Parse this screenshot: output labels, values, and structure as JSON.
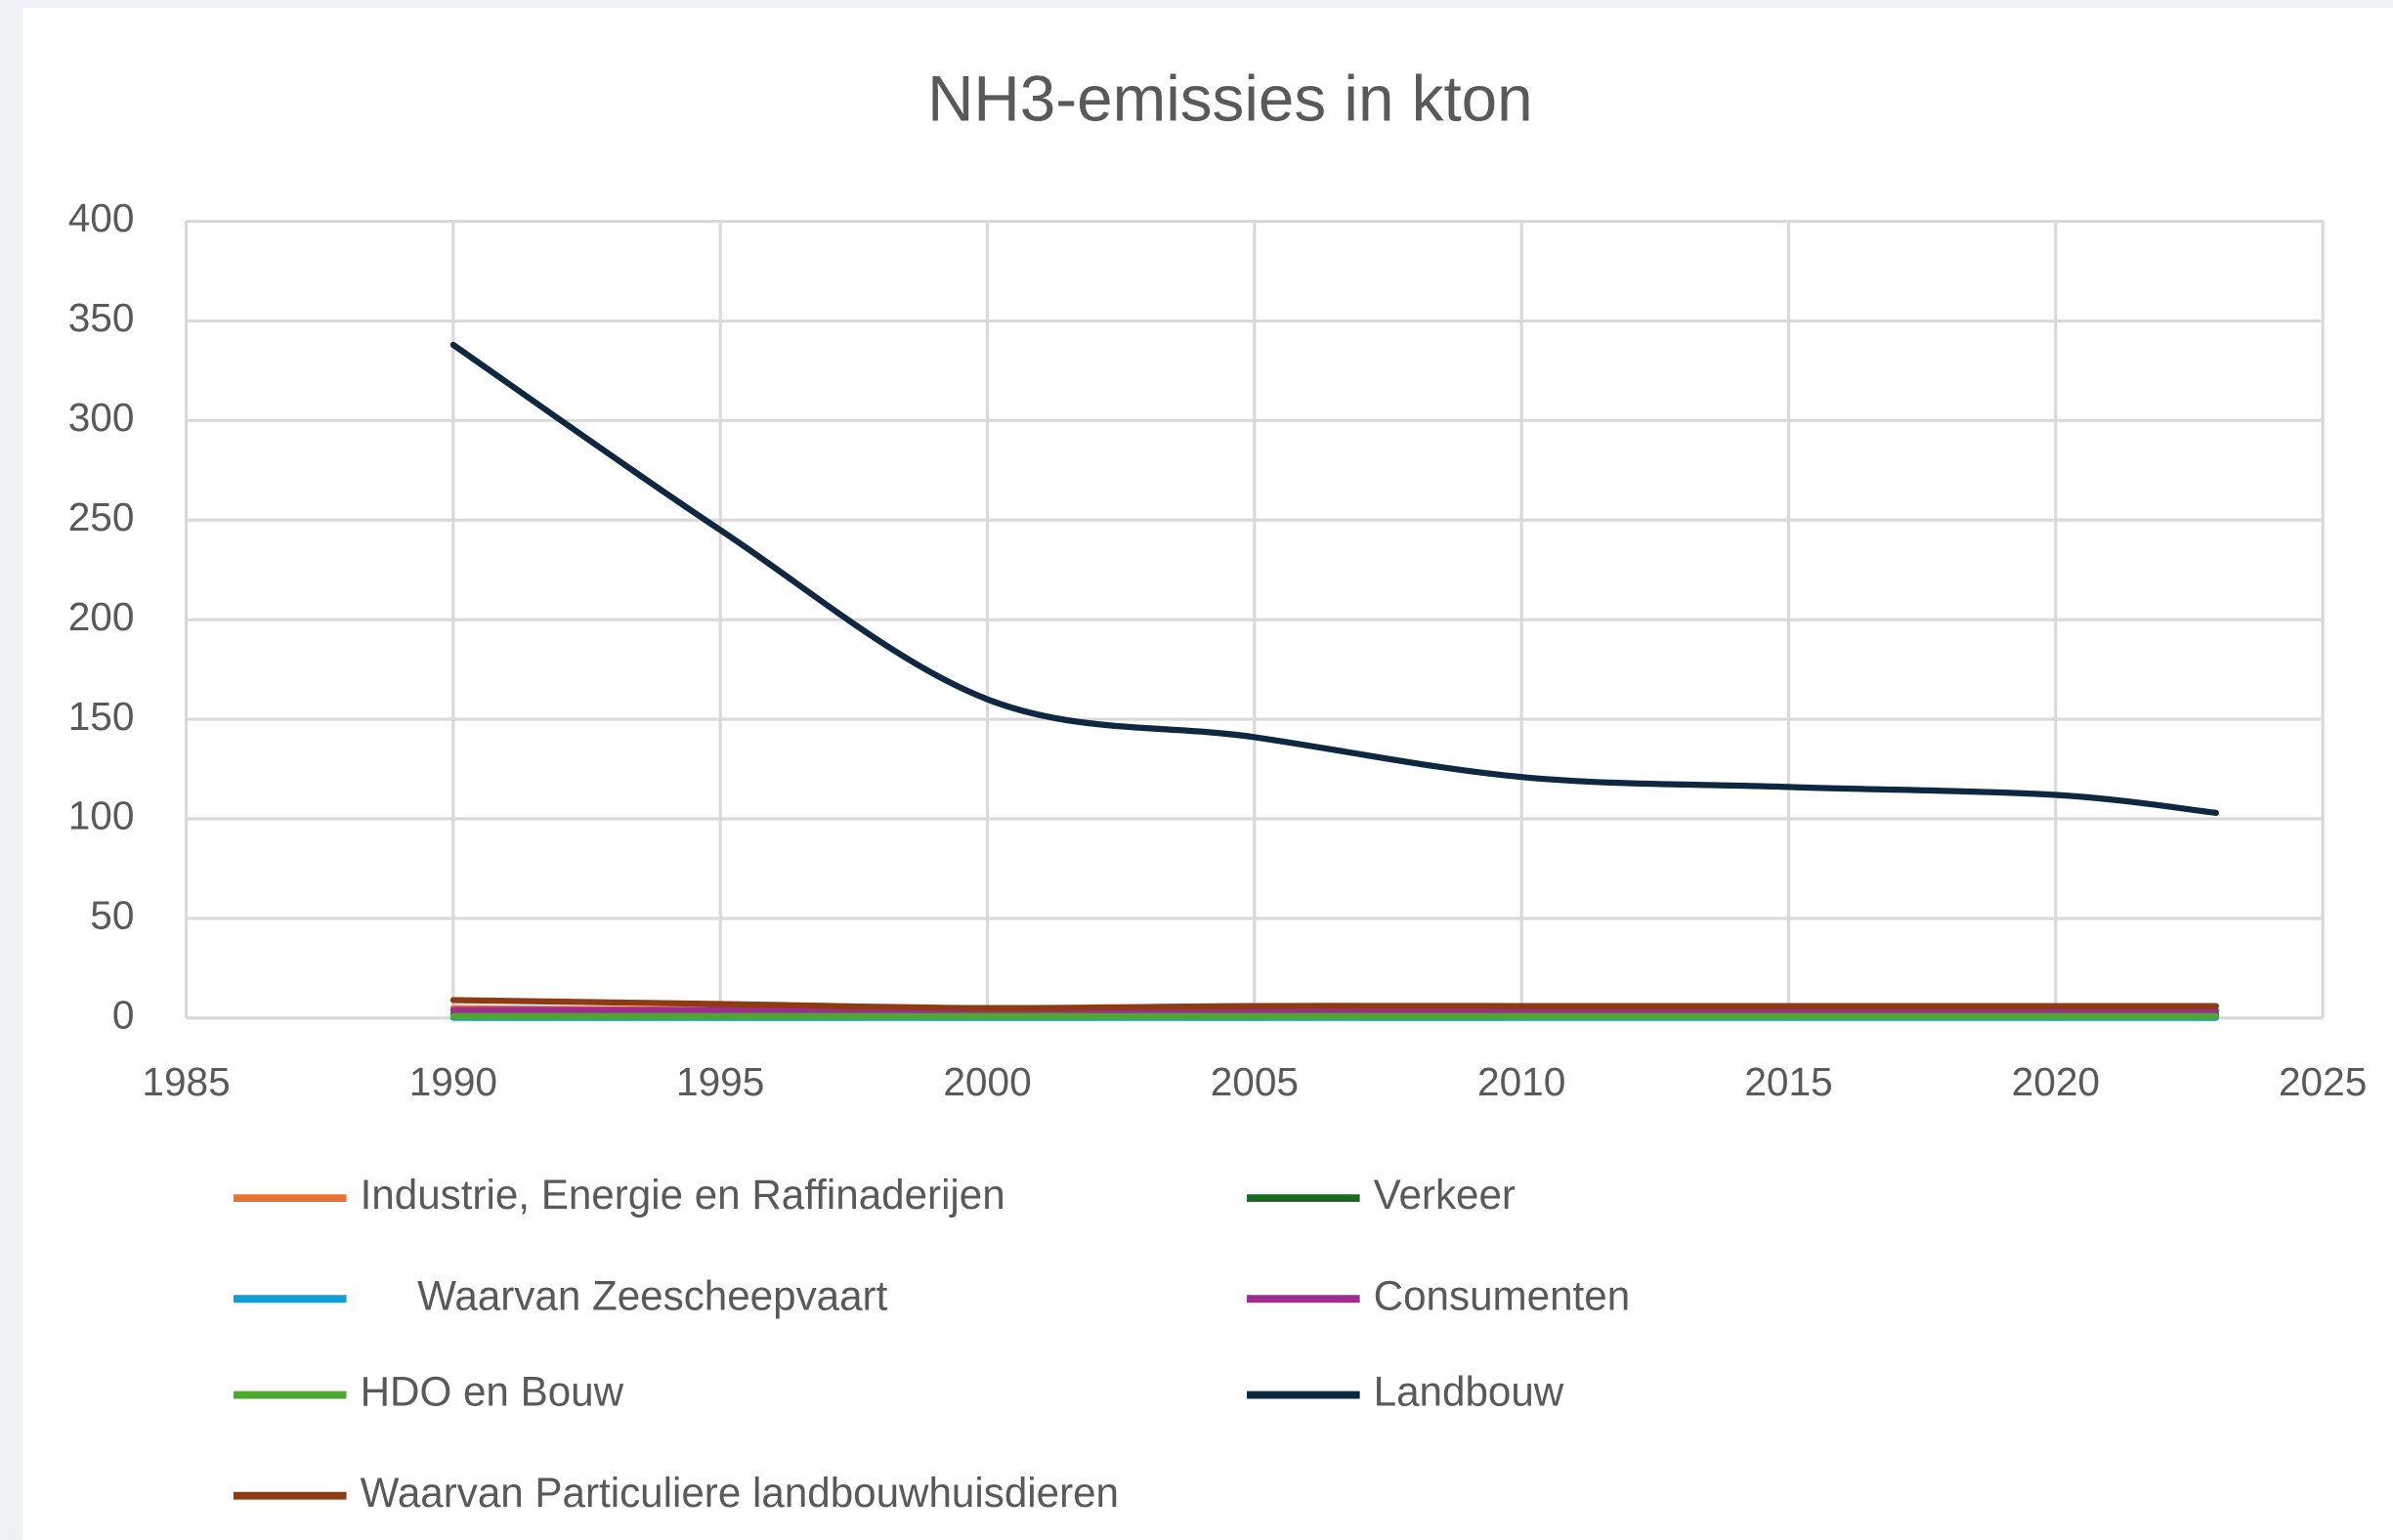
{
  "chart_data": {
    "type": "line",
    "title": "NH3-emissies in kton",
    "x": [
      1990,
      1995,
      2000,
      2005,
      2010,
      2015,
      2020,
      2023
    ],
    "series": [
      {
        "name": "Industrie, Energie en Raffinaderijen",
        "color": "#e97132",
        "values": [
          5,
          4,
          3,
          3,
          3,
          3,
          3,
          3
        ]
      },
      {
        "name": "Verkeer",
        "color": "#196b24",
        "values": [
          2,
          2,
          2,
          2,
          2,
          2,
          2,
          2
        ]
      },
      {
        "name": "     Waarvan Zeescheepvaart",
        "color": "#0f9ed5",
        "values": [
          0.1,
          0.1,
          0.1,
          0.1,
          0.1,
          0.1,
          0.1,
          0.1
        ]
      },
      {
        "name": "Consumenten",
        "color": "#a02b93",
        "values": [
          4,
          4,
          4,
          4,
          4,
          4,
          4,
          4
        ]
      },
      {
        "name": "HDO en Bouw",
        "color": "#4ea72e",
        "values": [
          1,
          1,
          1,
          1,
          1,
          1,
          1,
          1
        ]
      },
      {
        "name": "Landbouw",
        "color": "#0e2841",
        "values": [
          338,
          245,
          160,
          141,
          121,
          116,
          112,
          103
        ]
      },
      {
        "name": "Waarvan Particuliere landbouwhuisdieren",
        "color": "#8e3a12",
        "values": [
          9,
          7,
          5,
          6,
          6,
          6,
          6,
          6
        ]
      }
    ],
    "xlim": [
      1985,
      2025
    ],
    "xticks": [
      1985,
      1990,
      1995,
      2000,
      2005,
      2010,
      2015,
      2020,
      2025
    ],
    "ylim": [
      0,
      400
    ],
    "yticks": [
      0,
      50,
      100,
      150,
      200,
      250,
      300,
      350,
      400
    ],
    "grid": true,
    "legend": "bottom"
  }
}
